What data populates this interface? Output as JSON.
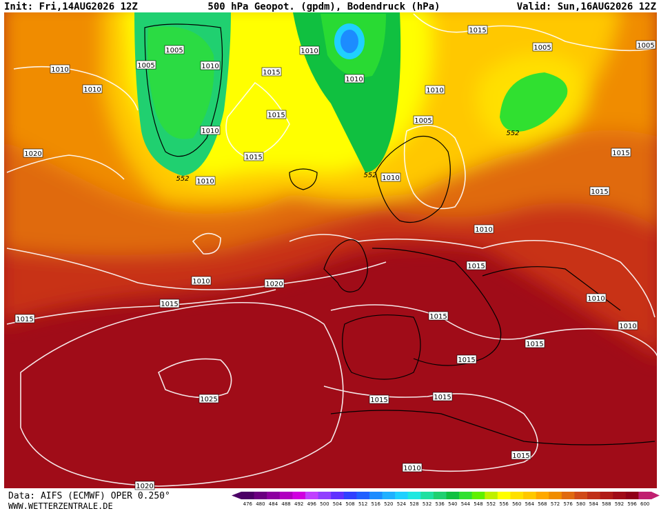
{
  "header": {
    "init": "Init: Fri,14AUG2026 12Z",
    "title": "500 hPa Geopot. (gpdm), Bodendruck (hPa)",
    "valid": "Valid: Sun,16AUG2026 12Z"
  },
  "footer": {
    "data": "Data: AIFS (ECMWF) OPER 0.250°",
    "site": "WWW.WETTERZENTRALE.DE"
  },
  "isobar_labels": [
    "1015",
    "1005",
    "1005",
    "1010",
    "1010",
    "1010",
    "1010",
    "1015",
    "1010",
    "1005",
    "1005",
    "1010",
    "1015",
    "1005",
    "552",
    "1010",
    "1020",
    "1015",
    "1015",
    "552",
    "1010",
    "552",
    "1010",
    "1015",
    "1010",
    "1015",
    "1010",
    "1020",
    "1010",
    "1015",
    "1015",
    "1015",
    "1010",
    "1015",
    "1015",
    "1025",
    "1015",
    "1015",
    "1015",
    "1010",
    "1020"
  ],
  "colorbar": {
    "labels": [
      476,
      480,
      484,
      488,
      492,
      496,
      500,
      504,
      508,
      512,
      516,
      520,
      524,
      528,
      532,
      536,
      540,
      544,
      548,
      552,
      556,
      560,
      564,
      568,
      572,
      576,
      580,
      584,
      588,
      592,
      596,
      600
    ],
    "colors": [
      "#4b0066",
      "#6a0080",
      "#8c00a0",
      "#b000c0",
      "#d000e0",
      "#c040ff",
      "#9040ff",
      "#6030ff",
      "#3040ff",
      "#2060ff",
      "#1c8cff",
      "#20b0ff",
      "#20d0ff",
      "#20e8e0",
      "#20e0a0",
      "#20d070",
      "#10c040",
      "#30e030",
      "#60f000",
      "#c0f000",
      "#ffff00",
      "#ffe000",
      "#ffc800",
      "#ffa800",
      "#f08c00",
      "#e06a10",
      "#d04a18",
      "#c03018",
      "#b01c18",
      "#a00c18",
      "#900018",
      "#c02070"
    ]
  }
}
